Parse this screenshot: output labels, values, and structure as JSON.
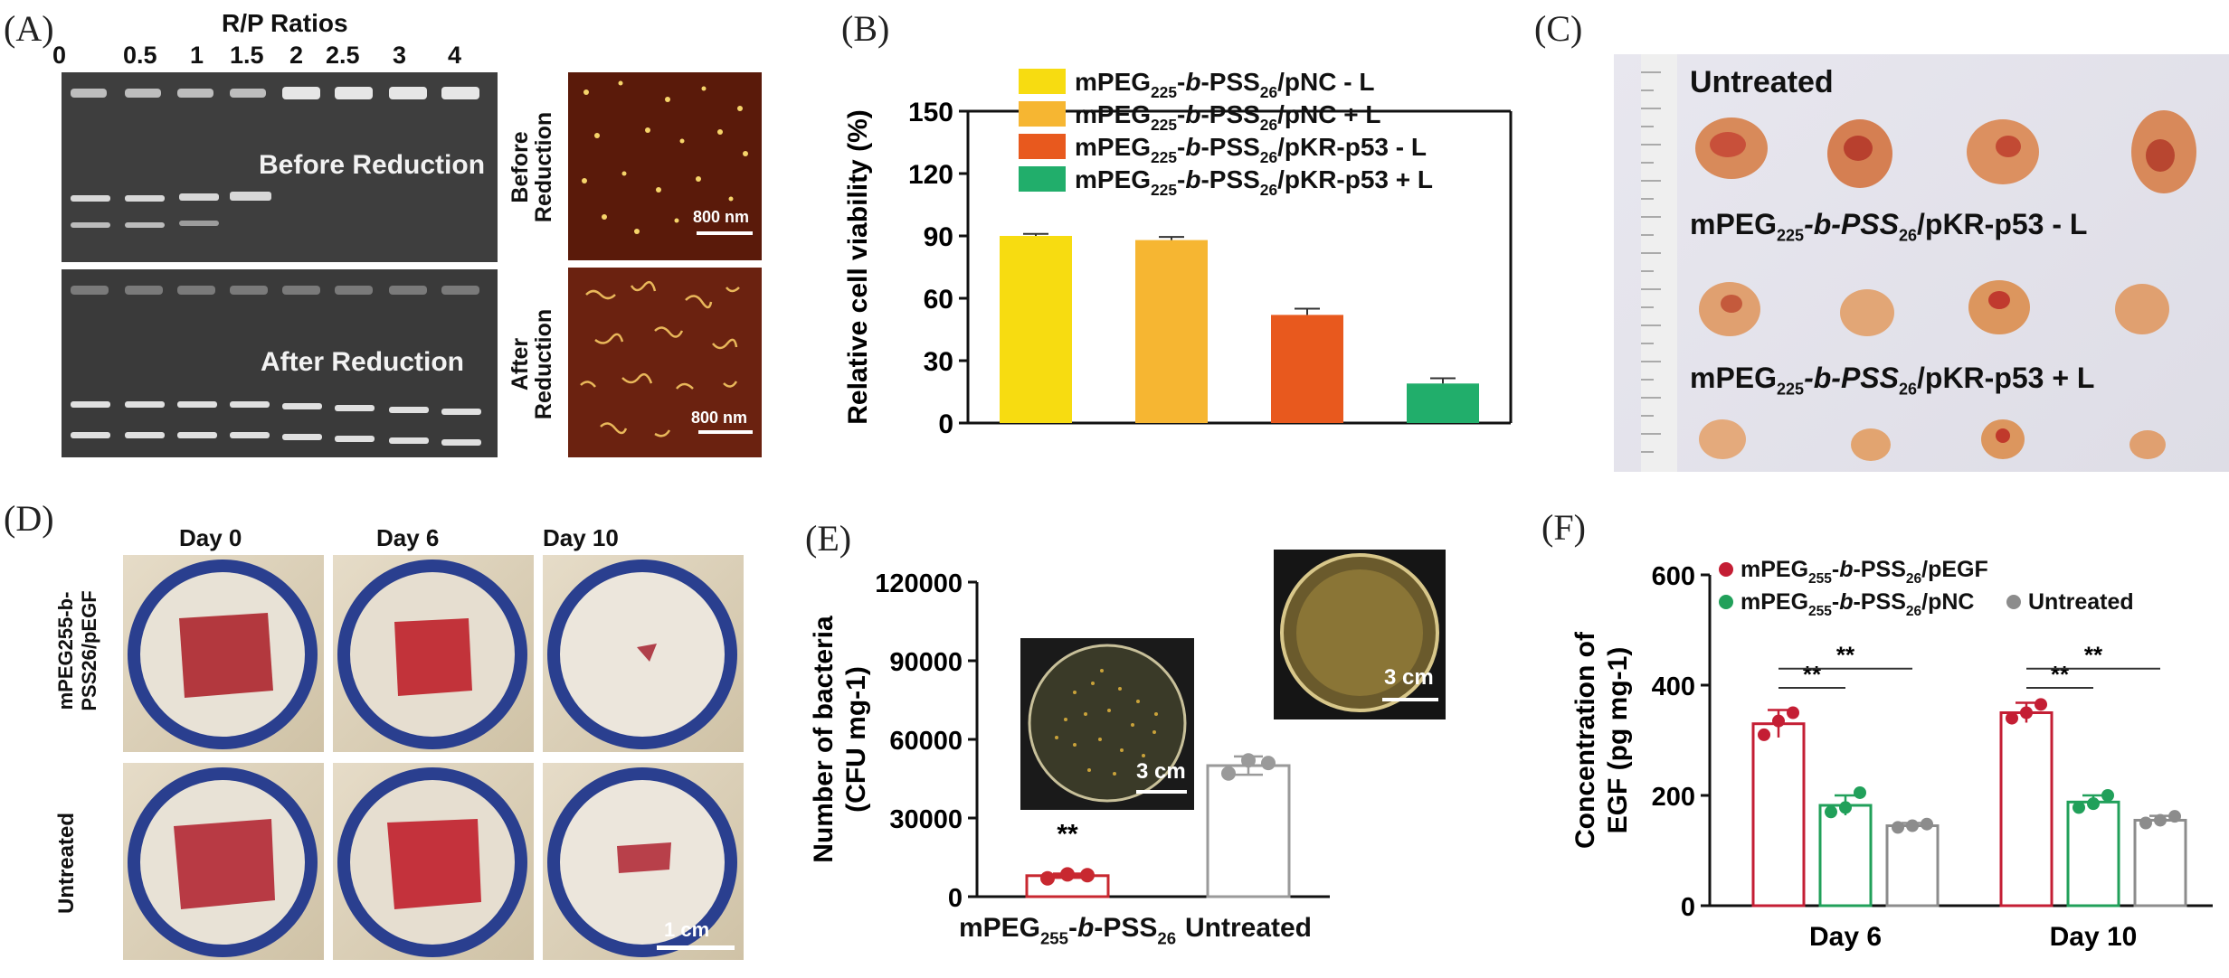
{
  "panelA": {
    "label": "(A)",
    "ratios_title": "R/P Ratios",
    "ratios": [
      "0",
      "0.5",
      "1",
      "1.5",
      "2",
      "2.5",
      "3",
      "4"
    ],
    "gel_top_label": "Before Reduction",
    "gel_bottom_label": "After Reduction",
    "afm_top_label_1": "Before",
    "afm_top_label_2": "Reduction",
    "afm_bottom_label_1": "After",
    "afm_bottom_label_2": "Reduction",
    "scale_top": "800 nm",
    "scale_bottom": "800 nm"
  },
  "panelB": {
    "label": "(B)"
  },
  "panelC": {
    "label": "(C)",
    "row1": "Untreated",
    "row2_pre": "mPEG",
    "row2_sub1": "225",
    "row2_mid": "-b-PSS",
    "row2_sub2": "26",
    "row2_post": "/pKR-p53 - L",
    "row3_post": "/pKR-p53 + L"
  },
  "panelD": {
    "label": "(D)",
    "days": [
      "Day 0",
      "Day 6",
      "Day 10"
    ],
    "row_label_1": "mPEG255-b-PSS26/pEGF",
    "row_label_2": "Untreated",
    "scale": "1 cm"
  },
  "panelE": {
    "label": "(E)",
    "inset_scale_1": "3 cm",
    "inset_scale_2": "3 cm"
  },
  "panelF": {
    "label": "(F)"
  },
  "chart_data": [
    {
      "id": "B",
      "type": "bar",
      "categories": [
        "mPEG225-b-PSS26/pNC - L",
        "mPEG225-b-PSS26/pNC + L",
        "mPEG225-b-PSS26/pKR-p53 - L",
        "mPEG225-b-PSS26/pKR-p53 + L"
      ],
      "values": [
        90,
        88,
        52,
        19
      ],
      "errors": [
        1,
        1.5,
        3,
        2.5
      ],
      "colors": [
        "#f7dc11",
        "#f6b632",
        "#e8591e",
        "#21ae6b"
      ],
      "ylabel": "Relative cell viability (%)",
      "ylim": [
        0,
        150
      ],
      "yticks": [
        0,
        30,
        60,
        90,
        120,
        150
      ],
      "legend": [
        "mPEG225-b-PSS26/pNC - L",
        "mPEG225-b-PSS26/pNC + L",
        "mPEG225-b-PSS26/pKR-p53 - L",
        "mPEG225-b-PSS26/pKR-p53 + L"
      ]
    },
    {
      "id": "E",
      "type": "bar",
      "categories": [
        "mPEG255-b-PSS26",
        "Untreated"
      ],
      "values": [
        8000,
        50000
      ],
      "errors": [
        800,
        3500
      ],
      "points": [
        [
          7000,
          8500,
          8200
        ],
        [
          47000,
          52000,
          51000
        ]
      ],
      "colors": [
        "#c82830",
        "#9a9a9a"
      ],
      "ylabel": "Number of bacteria (CFU mg-1)",
      "ylim": [
        0,
        120000
      ],
      "yticks": [
        0,
        30000,
        60000,
        90000,
        120000
      ],
      "annotation": "**"
    },
    {
      "id": "F",
      "type": "bar",
      "categories": [
        "Day 6",
        "Day 10"
      ],
      "series": [
        {
          "name": "mPEG255-b-PSS26/pEGF",
          "values": [
            330,
            350
          ],
          "errors": [
            25,
            18
          ],
          "points": [
            [
              310,
              335,
              350
            ],
            [
              340,
              350,
              365
            ]
          ],
          "color": "#c41e34"
        },
        {
          "name": "mPEG255-b-PSS26/pNC",
          "values": [
            182,
            188
          ],
          "errors": [
            18,
            12
          ],
          "points": [
            [
              170,
              178,
              205
            ],
            [
              178,
              185,
              200
            ]
          ],
          "color": "#21a05a"
        },
        {
          "name": "Untreated",
          "values": [
            145,
            155
          ],
          "errors": [
            5,
            8
          ],
          "points": [
            [
              142,
              145,
              148
            ],
            [
              150,
              155,
              162
            ]
          ],
          "color": "#8c8c8c"
        }
      ],
      "ylabel": "Concentration of EGF (pg mg-1)",
      "ylim": [
        0,
        600
      ],
      "yticks": [
        0,
        200,
        400,
        600
      ],
      "sig": "**"
    }
  ]
}
